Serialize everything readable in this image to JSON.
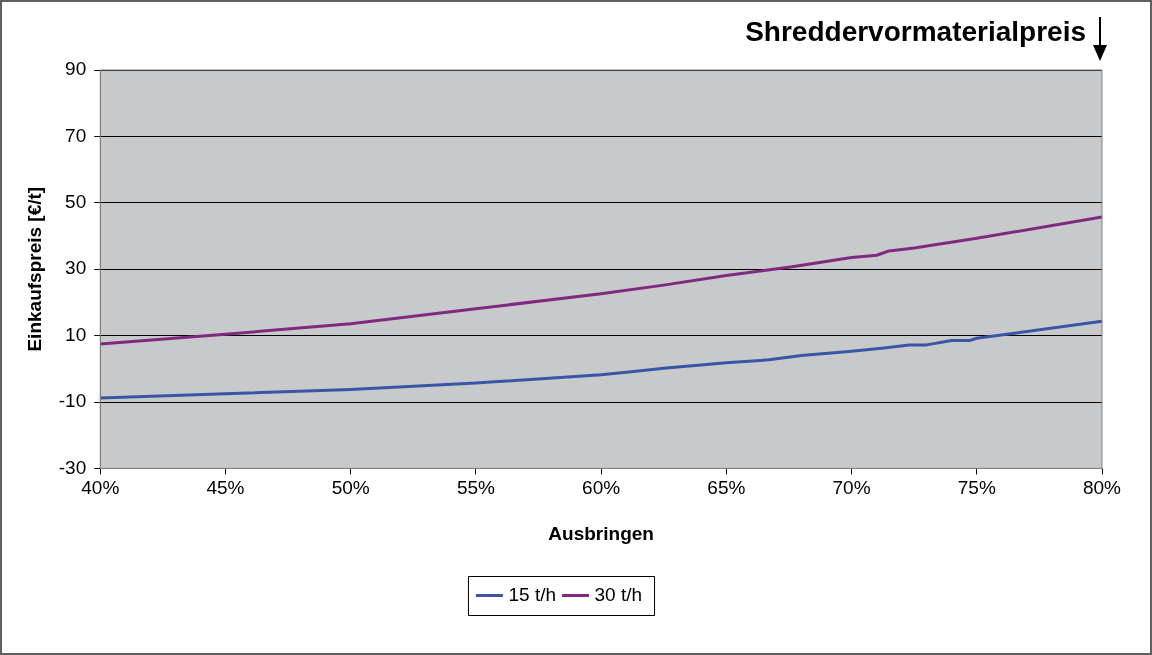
{
  "chart_data": {
    "type": "line",
    "title": "Shreddervormaterialpreis",
    "xlabel": "Ausbringen",
    "ylabel": "Einkaufspreis [€/t]",
    "xlim": [
      40,
      80
    ],
    "xticks": [
      {
        "value": 40,
        "label": "40%"
      },
      {
        "value": 45,
        "label": "45%"
      },
      {
        "value": 50,
        "label": "50%"
      },
      {
        "value": 55,
        "label": "55%"
      },
      {
        "value": 60,
        "label": "60%"
      },
      {
        "value": 65,
        "label": "65%"
      },
      {
        "value": 70,
        "label": "70%"
      },
      {
        "value": 75,
        "label": "75%"
      },
      {
        "value": 80,
        "label": "80%"
      }
    ],
    "ylim": [
      -30,
      90
    ],
    "yticks": [
      -30,
      -10,
      10,
      30,
      50,
      70,
      90
    ],
    "grid": "y",
    "legend": "bottom",
    "marker": "none",
    "line_style": "solid",
    "series": [
      {
        "name": "15 t/h",
        "color": "#3a55a5",
        "x": [
          40,
          45,
          50,
          55,
          60,
          61.3,
          62.5,
          65,
          66.7,
          68,
          70,
          71.3,
          72.3,
          73,
          74,
          74.7,
          75,
          80
        ],
        "values": [
          -8.8,
          -7.5,
          -6.2,
          -4.3,
          -1.8,
          -0.8,
          0.2,
          1.8,
          2.7,
          4.0,
          5.3,
          6.3,
          7.2,
          7.2,
          8.5,
          8.5,
          9.2,
          14.3
        ]
      },
      {
        "name": "30 t/h",
        "color": "#7f2a7f",
        "x": [
          40,
          45,
          50,
          55,
          60,
          62.5,
          65,
          67.5,
          70,
          71,
          71.5,
          72.5,
          75,
          80
        ],
        "values": [
          7.5,
          10.4,
          13.6,
          18.1,
          22.6,
          25.2,
          28.1,
          30.6,
          33.5,
          34.2,
          35.5,
          36.4,
          39.3,
          45.7
        ]
      }
    ]
  }
}
